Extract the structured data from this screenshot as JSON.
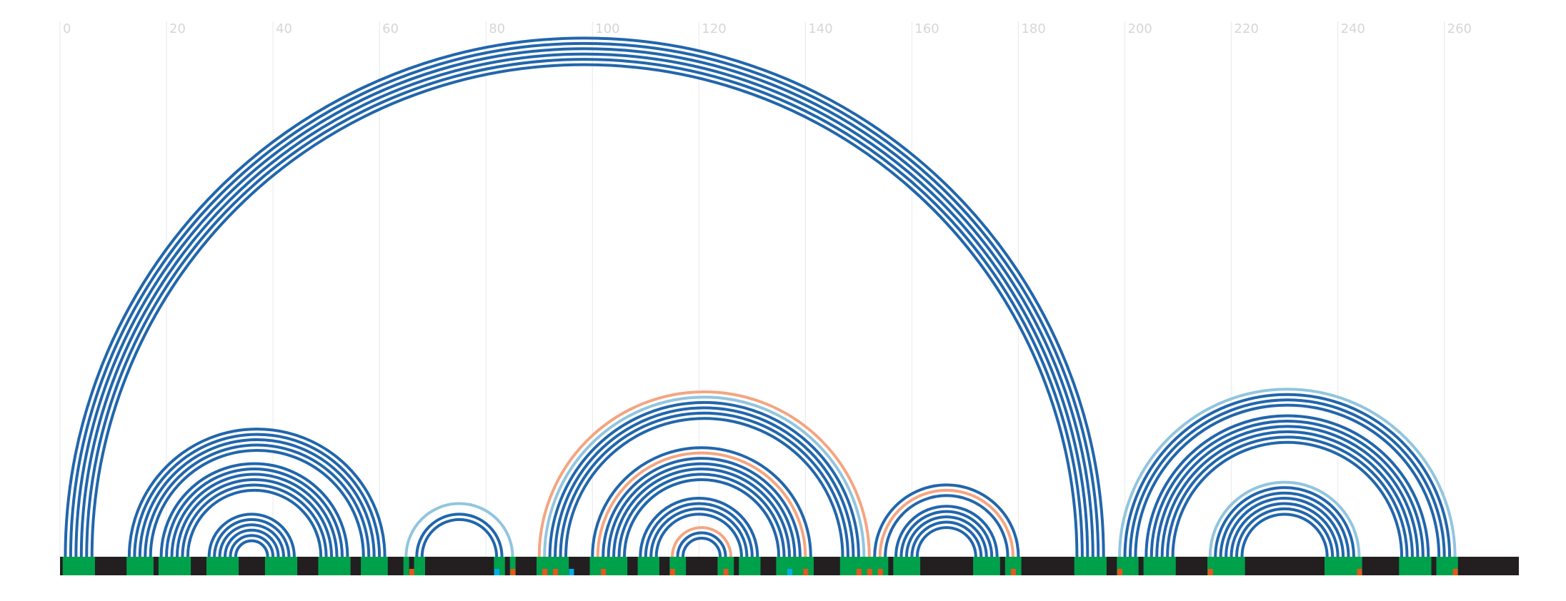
{
  "chart_data": {
    "type": "arc",
    "xlim": [
      0,
      274
    ],
    "xticks": [
      0,
      20,
      40,
      60,
      80,
      100,
      120,
      140,
      160,
      180,
      200,
      220,
      240,
      260
    ],
    "grid": true,
    "bar_color": "#231f20",
    "paired_color": "#00a14b",
    "arcs": [
      {
        "from": 1,
        "to": 196,
        "color": "#2166ac"
      },
      {
        "from": 2,
        "to": 195,
        "color": "#2166ac"
      },
      {
        "from": 3,
        "to": 194,
        "color": "#2166ac"
      },
      {
        "from": 4,
        "to": 193,
        "color": "#2166ac"
      },
      {
        "from": 5,
        "to": 192,
        "color": "#2166ac"
      },
      {
        "from": 6,
        "to": 191,
        "color": "#2166ac"
      },
      {
        "from": 13,
        "to": 61,
        "color": "#2166ac"
      },
      {
        "from": 14,
        "to": 60,
        "color": "#2166ac"
      },
      {
        "from": 15,
        "to": 59,
        "color": "#2166ac"
      },
      {
        "from": 16,
        "to": 58,
        "color": "#2166ac"
      },
      {
        "from": 17,
        "to": 57,
        "color": "#2166ac"
      },
      {
        "from": 19,
        "to": 54,
        "color": "#2166ac"
      },
      {
        "from": 20,
        "to": 53,
        "color": "#2166ac"
      },
      {
        "from": 21,
        "to": 52,
        "color": "#2166ac"
      },
      {
        "from": 22,
        "to": 51,
        "color": "#2166ac"
      },
      {
        "from": 23,
        "to": 50,
        "color": "#2166ac"
      },
      {
        "from": 24,
        "to": 49,
        "color": "#2166ac"
      },
      {
        "from": 28,
        "to": 44,
        "color": "#2166ac"
      },
      {
        "from": 29,
        "to": 43,
        "color": "#2166ac"
      },
      {
        "from": 30,
        "to": 42,
        "color": "#2166ac"
      },
      {
        "from": 31,
        "to": 41,
        "color": "#2166ac"
      },
      {
        "from": 32,
        "to": 40,
        "color": "#2166ac"
      },
      {
        "from": 33,
        "to": 39,
        "color": "#2166ac"
      },
      {
        "from": 65,
        "to": 85,
        "color": "#92c5de"
      },
      {
        "from": 67,
        "to": 83,
        "color": "#2166ac"
      },
      {
        "from": 68,
        "to": 82,
        "color": "#2166ac"
      },
      {
        "from": 90,
        "to": 152,
        "color": "#f4a582"
      },
      {
        "from": 91,
        "to": 151,
        "color": "#92c5de"
      },
      {
        "from": 92,
        "to": 150,
        "color": "#2166ac"
      },
      {
        "from": 93,
        "to": 149,
        "color": "#2166ac"
      },
      {
        "from": 94,
        "to": 148,
        "color": "#2166ac"
      },
      {
        "from": 95,
        "to": 147,
        "color": "#2166ac"
      },
      {
        "from": 100,
        "to": 141,
        "color": "#2166ac"
      },
      {
        "from": 101,
        "to": 140,
        "color": "#f4a582"
      },
      {
        "from": 102,
        "to": 139,
        "color": "#2166ac"
      },
      {
        "from": 103,
        "to": 138,
        "color": "#2166ac"
      },
      {
        "from": 104,
        "to": 137,
        "color": "#2166ac"
      },
      {
        "from": 105,
        "to": 136,
        "color": "#2166ac"
      },
      {
        "from": 106,
        "to": 135,
        "color": "#2166ac"
      },
      {
        "from": 109,
        "to": 131,
        "color": "#2166ac"
      },
      {
        "from": 110,
        "to": 130,
        "color": "#2166ac"
      },
      {
        "from": 111,
        "to": 129,
        "color": "#2166ac"
      },
      {
        "from": 112,
        "to": 128,
        "color": "#2166ac"
      },
      {
        "from": 115,
        "to": 126,
        "color": "#f4a582"
      },
      {
        "from": 116,
        "to": 125,
        "color": "#2166ac"
      },
      {
        "from": 117,
        "to": 124,
        "color": "#2166ac"
      },
      {
        "from": 153,
        "to": 180,
        "color": "#2166ac"
      },
      {
        "from": 154,
        "to": 179,
        "color": "#f4a582"
      },
      {
        "from": 155,
        "to": 178,
        "color": "#2166ac"
      },
      {
        "from": 157,
        "to": 176,
        "color": "#2166ac"
      },
      {
        "from": 158,
        "to": 175,
        "color": "#2166ac"
      },
      {
        "from": 159,
        "to": 174,
        "color": "#2166ac"
      },
      {
        "from": 160,
        "to": 173,
        "color": "#2166ac"
      },
      {
        "from": 161,
        "to": 172,
        "color": "#2166ac"
      },
      {
        "from": 199,
        "to": 262,
        "color": "#92c5de"
      },
      {
        "from": 200,
        "to": 261,
        "color": "#2166ac"
      },
      {
        "from": 201,
        "to": 260,
        "color": "#2166ac"
      },
      {
        "from": 202,
        "to": 259,
        "color": "#2166ac"
      },
      {
        "from": 204,
        "to": 257,
        "color": "#2166ac"
      },
      {
        "from": 205,
        "to": 256,
        "color": "#2166ac"
      },
      {
        "from": 206,
        "to": 255,
        "color": "#2166ac"
      },
      {
        "from": 207,
        "to": 254,
        "color": "#2166ac"
      },
      {
        "from": 208,
        "to": 253,
        "color": "#2166ac"
      },
      {
        "from": 209,
        "to": 252,
        "color": "#2166ac"
      },
      {
        "from": 216,
        "to": 244,
        "color": "#92c5de"
      },
      {
        "from": 217,
        "to": 243,
        "color": "#2166ac"
      },
      {
        "from": 218,
        "to": 242,
        "color": "#2166ac"
      },
      {
        "from": 219,
        "to": 241,
        "color": "#2166ac"
      },
      {
        "from": 220,
        "to": 240,
        "color": "#2166ac"
      },
      {
        "from": 221,
        "to": 239,
        "color": "#2166ac"
      },
      {
        "from": 222,
        "to": 238,
        "color": "#2166ac"
      }
    ],
    "markers": [
      {
        "position": 66,
        "color": "#e8561a"
      },
      {
        "position": 85,
        "color": "#e8561a"
      },
      {
        "position": 91,
        "color": "#e8561a"
      },
      {
        "position": 93,
        "color": "#e8561a"
      },
      {
        "position": 102,
        "color": "#e8561a"
      },
      {
        "position": 115,
        "color": "#e8561a"
      },
      {
        "position": 125,
        "color": "#e8561a"
      },
      {
        "position": 140,
        "color": "#e8561a"
      },
      {
        "position": 150,
        "color": "#e8561a"
      },
      {
        "position": 152,
        "color": "#e8561a"
      },
      {
        "position": 154,
        "color": "#e8561a"
      },
      {
        "position": 179,
        "color": "#e8561a"
      },
      {
        "position": 199,
        "color": "#e8561a"
      },
      {
        "position": 216,
        "color": "#e8561a"
      },
      {
        "position": 244,
        "color": "#e8561a"
      },
      {
        "position": 262,
        "color": "#e8561a"
      },
      {
        "position": 82,
        "color": "#00aeef"
      },
      {
        "position": 96,
        "color": "#00aeef"
      },
      {
        "position": 137,
        "color": "#00aeef"
      }
    ]
  }
}
